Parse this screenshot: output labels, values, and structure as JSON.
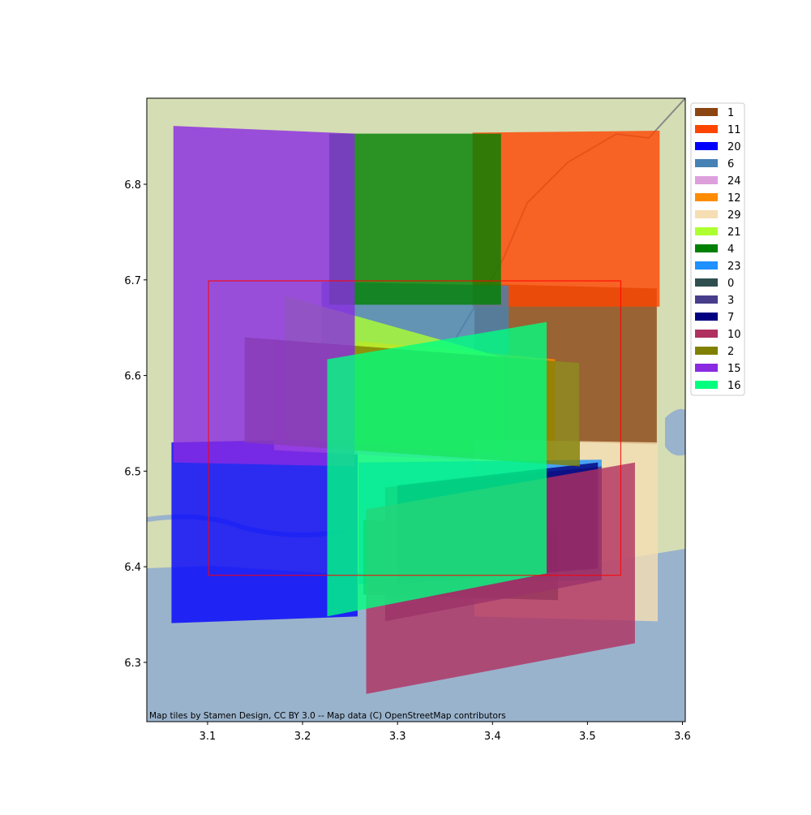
{
  "chart_data": {
    "type": "polygon",
    "xlim": [
      3.036,
      3.603
    ],
    "ylim": [
      6.238,
      6.89
    ],
    "xticks": [
      3.1,
      3.2,
      3.3,
      3.4,
      3.5,
      3.6
    ],
    "yticks": [
      6.3,
      6.4,
      6.5,
      6.6,
      6.7,
      6.8
    ],
    "attribution": "Map tiles by Stamen Design, CC BY 3.0 -- Map data (C) OpenStreetMap contributors",
    "legend": "upper right",
    "alpha": 0.8,
    "bbox": {
      "color": "red",
      "x": [
        3.101,
        3.535,
        3.535,
        3.101
      ],
      "y": [
        6.699,
        6.699,
        6.391,
        6.391
      ]
    },
    "series": [
      {
        "name": "1",
        "color": "#8B4513",
        "x": [
          3.381,
          3.573,
          3.573,
          3.381
        ],
        "y": [
          6.696,
          6.691,
          6.528,
          6.533
        ]
      },
      {
        "name": "11",
        "color": "#FF4500",
        "x": [
          3.379,
          3.576,
          3.576,
          3.379
        ],
        "y": [
          6.854,
          6.856,
          6.672,
          6.672
        ]
      },
      {
        "name": "20",
        "color": "#0000FF",
        "x": [
          3.062,
          3.258,
          3.258,
          3.062
        ],
        "y": [
          6.53,
          6.534,
          6.348,
          6.341
        ]
      },
      {
        "name": "6",
        "color": "#4682B4",
        "x": [
          3.22,
          3.417,
          3.417,
          3.22
        ],
        "y": [
          6.698,
          6.694,
          6.517,
          6.522
        ]
      },
      {
        "name": "24",
        "color": "#DDA0DD",
        "x": [
          3.17,
          3.491,
          3.491,
          3.17
        ],
        "y": [
          6.636,
          6.613,
          6.505,
          6.522
        ]
      },
      {
        "name": "12",
        "color": "#FF8C00",
        "x": [
          3.257,
          3.466,
          3.466,
          3.257
        ],
        "y": [
          6.636,
          6.617,
          6.509,
          6.522
        ]
      },
      {
        "name": "29",
        "color": "#F5DEB3",
        "x": [
          3.381,
          3.574,
          3.574,
          3.381
        ],
        "y": [
          6.533,
          6.53,
          6.343,
          6.348
        ]
      },
      {
        "name": "21",
        "color": "#ADFF2F",
        "x": [
          3.182,
          3.411,
          3.411,
          3.182
        ],
        "y": [
          6.683,
          6.619,
          6.517,
          6.534
        ]
      },
      {
        "name": "4",
        "color": "#008000",
        "x": [
          3.228,
          3.409,
          3.409,
          3.228
        ],
        "y": [
          6.853,
          6.853,
          6.674,
          6.674
        ]
      },
      {
        "name": "23",
        "color": "#1E90FF",
        "x": [
          3.259,
          3.515,
          3.515,
          3.259
        ],
        "y": [
          6.509,
          6.512,
          6.386,
          6.382
        ]
      },
      {
        "name": "0",
        "color": "#2F4F4F",
        "x": [
          3.264,
          3.469,
          3.469,
          3.264
        ],
        "y": [
          6.449,
          6.439,
          6.365,
          6.371
        ]
      },
      {
        "name": "3",
        "color": "#483D8B",
        "x": [
          3.287,
          3.515,
          3.515,
          3.287
        ],
        "y": [
          6.483,
          6.505,
          6.386,
          6.343
        ]
      },
      {
        "name": "7",
        "color": "#000080",
        "x": [
          3.3,
          3.511,
          3.511,
          3.3
        ],
        "y": [
          6.485,
          6.509,
          6.398,
          6.382
        ]
      },
      {
        "name": "10",
        "color": "#B03060",
        "x": [
          3.267,
          3.55,
          3.55,
          3.267
        ],
        "y": [
          6.46,
          6.509,
          6.32,
          6.267
        ]
      },
      {
        "name": "2",
        "color": "#808000",
        "x": [
          3.139,
          3.492,
          3.492,
          3.139
        ],
        "y": [
          6.64,
          6.613,
          6.505,
          6.53
        ]
      },
      {
        "name": "15",
        "color": "#8A2BE2",
        "x": [
          3.064,
          3.255,
          3.255,
          3.064
        ],
        "y": [
          6.861,
          6.853,
          6.505,
          6.509
        ]
      },
      {
        "name": "16",
        "color": "#00FF7F",
        "x": [
          3.226,
          3.457,
          3.457,
          3.226
        ],
        "y": [
          6.617,
          6.656,
          6.393,
          6.348
        ]
      }
    ]
  }
}
